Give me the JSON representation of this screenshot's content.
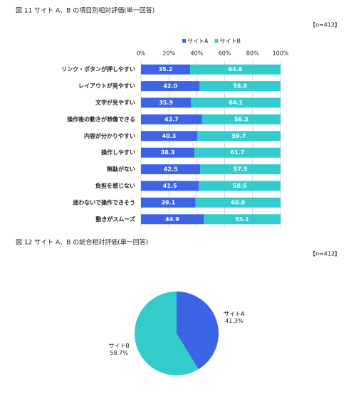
{
  "chart_data": [
    {
      "type": "bar",
      "orientation": "horizontal",
      "stacked": true,
      "title": "図 11 サイト A、B の項目別相対評価(単一回答)",
      "note": "【n=412】",
      "categories": [
        "リンク・ボタンが押しやすい",
        "レイアウトが見やすい",
        "文字が見やすい",
        "操作後の動きが想像できる",
        "内容が分かりやすい",
        "操作しやすい",
        "無駄がない",
        "負担を感じない",
        "迷わないで操作できそう",
        "動きがスムーズ"
      ],
      "series": [
        {
          "name": "サイトA",
          "color": "#3d63e6",
          "values": [
            35.2,
            42.0,
            35.9,
            43.7,
            40.3,
            38.3,
            42.5,
            41.5,
            39.1,
            44.9
          ],
          "value_labels": [
            "35.2",
            "42.0",
            "35.9",
            "43.7",
            "40.3",
            "38.3",
            "42.5",
            "41.5",
            "39.1",
            "44.9"
          ]
        },
        {
          "name": "サイトB",
          "color": "#33cccc",
          "values": [
            64.8,
            58.0,
            64.1,
            56.3,
            59.7,
            61.7,
            57.5,
            58.5,
            60.9,
            55.1
          ],
          "value_labels": [
            "64.8",
            "58.0",
            "64.1",
            "56.3",
            "59.7",
            "61.7",
            "57.5",
            "58.5",
            "60.9",
            "55.1"
          ]
        }
      ],
      "xlim": [
        0,
        100
      ],
      "xticks": [
        {
          "value": 0,
          "label": "0%"
        },
        {
          "value": 20,
          "label": "20%"
        },
        {
          "value": 40,
          "label": "40%"
        },
        {
          "value": 60,
          "label": "60%"
        },
        {
          "value": 80,
          "label": "80%"
        },
        {
          "value": 100,
          "label": "100%"
        }
      ],
      "grid": true,
      "legend": "top"
    },
    {
      "type": "pie",
      "title": "図 12 サイト A、B の総合相対評価(単一回答)",
      "note": "【n=412】",
      "categories": [
        "サイトA",
        "サイトB"
      ],
      "values": [
        41.3,
        58.7
      ],
      "value_labels": [
        "41.3%",
        "58.7%"
      ],
      "colors": [
        "#3d63e6",
        "#33cccc"
      ]
    }
  ]
}
